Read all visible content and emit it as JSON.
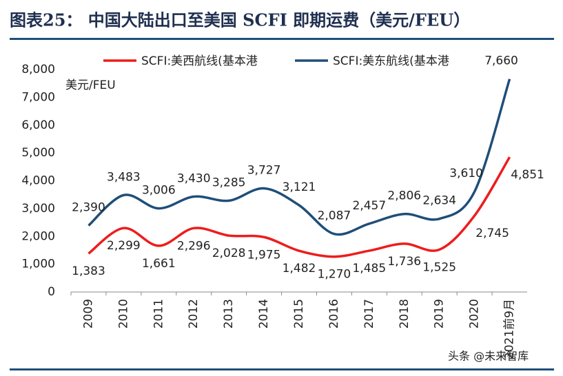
{
  "chart_data": {
    "type": "line",
    "title": "图表25： 中国大陆出口至美国 SCFI 即期运费（美元/FEU）",
    "y_label": "美元/FEU",
    "watermark": "头条 @未来智库",
    "categories": [
      "2009",
      "2010",
      "2011",
      "2012",
      "2013",
      "2014",
      "2015",
      "2016",
      "2017",
      "2018",
      "2019",
      "2020",
      "2021前9月"
    ],
    "series": [
      {
        "name": "SCFI:美西航线(基本港",
        "color": "#ee1c1c",
        "values": [
          1383,
          2299,
          1661,
          2296,
          2028,
          1975,
          1482,
          1270,
          1485,
          1736,
          1525,
          2745,
          4851
        ],
        "value_labels": [
          "1,383",
          "2,299",
          "1,661",
          "2,296",
          "2,028",
          "1,975",
          "1,482",
          "1,270",
          "1,485",
          "1,736",
          "1,525",
          "2,745",
          "4,851"
        ]
      },
      {
        "name": "SCFI:美东航线(基本港",
        "color": "#1f4e79",
        "values": [
          2390,
          3483,
          3006,
          3430,
          3285,
          3727,
          3121,
          2087,
          2457,
          2806,
          2634,
          3610,
          7660
        ],
        "value_labels": [
          "2,390",
          "3,483",
          "3,006",
          "3,430",
          "3,285",
          "3,727",
          "3,121",
          "2,087",
          "2,457",
          "2,806",
          "2,634",
          "3,610",
          "7,660"
        ]
      }
    ],
    "ylim": [
      0,
      8000
    ],
    "yticks": [
      0,
      {
        "value": 1000,
        "label": "1,000"
      },
      {
        "value": 2000,
        "label": "2,000"
      },
      {
        "value": 3000,
        "label": "3,000"
      },
      {
        "value": 4000,
        "label": "4,000"
      },
      {
        "value": 5000,
        "label": "5,000"
      },
      {
        "value": 6000,
        "label": "6,000"
      },
      {
        "value": 7000,
        "label": "7,000"
      },
      {
        "value": 8000,
        "label": "8,000"
      }
    ],
    "grid": false,
    "legend": "top"
  }
}
